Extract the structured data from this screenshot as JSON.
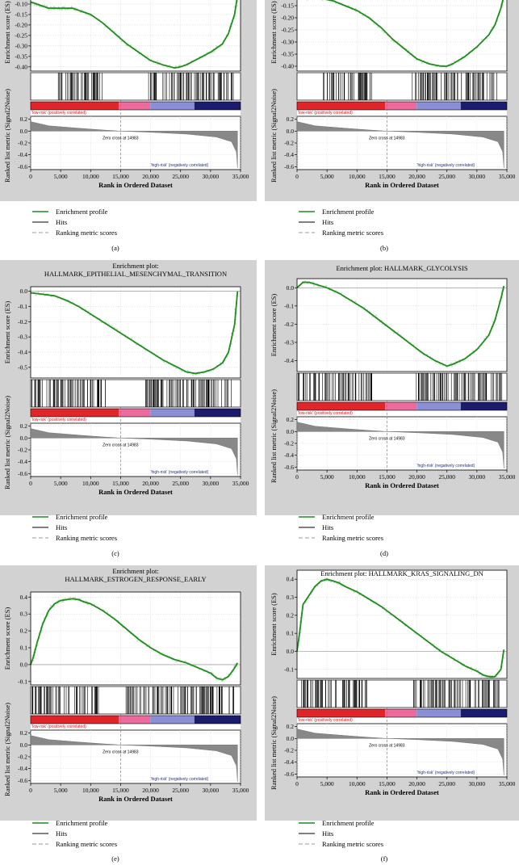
{
  "ticks": {
    "rank_x": [
      "0",
      "5,000",
      "10,000",
      "15,000",
      "20,000",
      "25,000",
      "30,000",
      "35,000"
    ],
    "es_a": [
      "-0.10",
      "-0.15",
      "-0.20",
      "-0.25",
      "-0.30",
      "-0.35",
      "-0.40"
    ],
    "es_b": [
      "-0.15",
      "-0.20",
      "-0.25",
      "-0.30",
      "-0.35",
      "-0.40"
    ],
    "es_c": [
      "0.0",
      "-0.1",
      "-0.2",
      "-0.3",
      "-0.4",
      "-0.5"
    ],
    "es_d": [
      "0.0",
      "-0.1",
      "-0.2",
      "-0.3",
      "-0.4"
    ],
    "es_e": [
      "0.4",
      "0.3",
      "0.2",
      "0.1",
      "0.0",
      "-0.1"
    ],
    "es_f": [
      "0.4",
      "0.3",
      "0.2",
      "0.1",
      "0.0",
      "-0.1"
    ],
    "metric": [
      "0.2",
      "0.0",
      "-0.2",
      "-0.4",
      "-0.6"
    ]
  },
  "labels": {
    "x_axis": "Rank in Ordered Dataset",
    "y_es": "Enrichment score (ES)",
    "y_metric": "Ranked list metric (Signal2Noise)",
    "low_risk": "'low-risk' (positively correlated)",
    "high_risk": "'high-risk' (negatively correlated)",
    "zero_cross": "Zero cross at 14983"
  },
  "legend": {
    "profile": "Enrichment profile",
    "hits": "Hits",
    "ranking": "Ranking metric scores"
  },
  "colors": {
    "profile": "#1e8c1e",
    "band_red": "#e0262b",
    "band_pink": "#ec6b9c",
    "band_navy": "#1c1c6e"
  },
  "chart_data": [
    {
      "type": "line",
      "panel": "(a)",
      "title": "",
      "xlabel": "Rank in Ordered Dataset",
      "ylabel": "Enrichment score (ES)",
      "xlim": [
        0,
        35000
      ],
      "ylim": [
        -0.42,
        -0.05
      ],
      "x": [
        0,
        1000,
        2000,
        3000,
        4000,
        5000,
        6000,
        7000,
        8000,
        9000,
        10000,
        12000,
        14000,
        16000,
        18000,
        20000,
        22000,
        24000,
        25000,
        26000,
        28000,
        30000,
        31000,
        32000,
        33000,
        34000,
        34500
      ],
      "y": [
        -0.09,
        -0.1,
        -0.11,
        -0.12,
        -0.12,
        -0.12,
        -0.12,
        -0.12,
        -0.13,
        -0.14,
        -0.15,
        -0.19,
        -0.24,
        -0.29,
        -0.33,
        -0.37,
        -0.39,
        -0.405,
        -0.4,
        -0.39,
        -0.36,
        -0.33,
        -0.31,
        -0.29,
        -0.24,
        -0.15,
        -0.06
      ],
      "hits_ranges": [
        [
          4300,
          12300
        ],
        [
          19500,
          33900
        ]
      ],
      "zero_cross": 14983,
      "metric_ticks": [
        0.2,
        0.0,
        -0.2,
        -0.4,
        -0.6
      ],
      "metric_ylim": [
        -0.65,
        0.25
      ]
    },
    {
      "type": "line",
      "panel": "(b)",
      "title": "",
      "xlabel": "Rank in Ordered Dataset",
      "ylabel": "Enrichment score (ES)",
      "xlim": [
        0,
        35000
      ],
      "ylim": [
        -0.42,
        -0.1
      ],
      "x": [
        0,
        2000,
        4000,
        6000,
        8000,
        10000,
        12000,
        14000,
        16000,
        18000,
        20000,
        22000,
        24000,
        25000,
        26000,
        28000,
        30000,
        32000,
        33000,
        34000,
        34500
      ],
      "y": [
        -0.12,
        -0.12,
        -0.12,
        -0.13,
        -0.15,
        -0.17,
        -0.2,
        -0.24,
        -0.29,
        -0.33,
        -0.37,
        -0.39,
        -0.4,
        -0.4,
        -0.39,
        -0.36,
        -0.32,
        -0.27,
        -0.23,
        -0.16,
        -0.11
      ],
      "hits_ranges": [
        [
          4300,
          12500
        ],
        [
          19200,
          33800
        ]
      ],
      "zero_cross": 14983,
      "metric_ticks": [
        0.2,
        0.0,
        -0.2,
        -0.4,
        -0.6
      ],
      "metric_ylim": [
        -0.65,
        0.25
      ]
    },
    {
      "type": "line",
      "panel": "(c)",
      "title": "Enrichment plot:\nHALLMARK_EPITHELIAL_MESENCHYMAL_TRANSITION",
      "xlabel": "Rank in Ordered Dataset",
      "ylabel": "Enrichment score (ES)",
      "xlim": [
        0,
        35000
      ],
      "ylim": [
        -0.57,
        0.03
      ],
      "x": [
        0,
        2000,
        4000,
        6000,
        8000,
        10000,
        12000,
        14000,
        16000,
        18000,
        20000,
        22000,
        24000,
        26000,
        27500,
        29000,
        30500,
        32000,
        33000,
        34000,
        34500
      ],
      "y": [
        -0.01,
        -0.02,
        -0.03,
        -0.06,
        -0.1,
        -0.15,
        -0.2,
        -0.25,
        -0.3,
        -0.35,
        -0.4,
        -0.45,
        -0.49,
        -0.53,
        -0.54,
        -0.53,
        -0.51,
        -0.47,
        -0.4,
        -0.22,
        0.0
      ],
      "hits_ranges": [
        [
          100,
          12800
        ],
        [
          19100,
          33600
        ]
      ],
      "zero_cross": 14983,
      "metric_ticks": [
        0.2,
        0.0,
        -0.2,
        -0.4,
        -0.6
      ],
      "metric_ylim": [
        -0.65,
        0.25
      ]
    },
    {
      "type": "line",
      "panel": "(d)",
      "title": "Enrichment plot: HALLMARK_GLYCOLYSIS",
      "xlabel": "Rank in Ordered Dataset",
      "ylabel": "Enrichment score (ES)",
      "xlim": [
        0,
        35000
      ],
      "ylim": [
        -0.46,
        0.05
      ],
      "x": [
        0,
        1000,
        2000,
        3000,
        5000,
        7000,
        9000,
        11000,
        13000,
        15000,
        17000,
        19000,
        21000,
        23000,
        25000,
        26000,
        28000,
        30000,
        32000,
        33000,
        34000,
        34500
      ],
      "y": [
        0.0,
        0.03,
        0.03,
        0.02,
        0.0,
        -0.03,
        -0.07,
        -0.11,
        -0.16,
        -0.21,
        -0.26,
        -0.31,
        -0.36,
        -0.4,
        -0.43,
        -0.42,
        -0.39,
        -0.34,
        -0.26,
        -0.18,
        -0.06,
        0.01
      ],
      "hits_ranges": [
        [
          200,
          12500
        ],
        [
          19500,
          34200
        ]
      ],
      "zero_cross": 14983,
      "metric_ticks": [
        0.2,
        0.0,
        -0.2,
        -0.4,
        -0.6
      ],
      "metric_ylim": [
        -0.65,
        0.25
      ]
    },
    {
      "type": "line",
      "panel": "(e)",
      "title": "Enrichment plot:\nHALLMARK_ESTROGEN_RESPONSE_EARLY",
      "xlabel": "Rank in Ordered Dataset",
      "ylabel": "Enrichment score (ES)",
      "xlim": [
        0,
        35000
      ],
      "ylim": [
        -0.12,
        0.43
      ],
      "x": [
        0,
        500,
        1000,
        2000,
        3000,
        4000,
        5000,
        6000,
        7000,
        8000,
        9000,
        10000,
        12000,
        14000,
        16000,
        18000,
        20000,
        22000,
        24000,
        26000,
        28000,
        30000,
        31000,
        32000,
        33000,
        34000,
        34500
      ],
      "y": [
        0.0,
        0.05,
        0.12,
        0.24,
        0.32,
        0.36,
        0.38,
        0.385,
        0.39,
        0.385,
        0.37,
        0.36,
        0.32,
        0.27,
        0.21,
        0.15,
        0.1,
        0.06,
        0.03,
        0.01,
        -0.02,
        -0.05,
        -0.08,
        -0.09,
        -0.07,
        -0.02,
        0.01
      ],
      "hits_ranges": [
        [
          200,
          11400
        ],
        [
          15800,
          33900
        ]
      ],
      "zero_cross": 14983,
      "metric_ticks": [
        0.2,
        0.0,
        -0.2,
        -0.4,
        -0.6
      ],
      "metric_ylim": [
        -0.65,
        0.25
      ]
    },
    {
      "type": "line",
      "panel": "(f)",
      "title": "Enrichment plot: HALLMARK_KRAS_SIGNALING_DN",
      "xlabel": "Rank in Ordered Dataset",
      "ylabel": "Enrichment score (ES)",
      "xlim": [
        0,
        35000
      ],
      "ylim": [
        -0.15,
        0.45
      ],
      "x": [
        0,
        500,
        1000,
        2000,
        3000,
        4000,
        5000,
        6000,
        7000,
        8000,
        10000,
        12000,
        14000,
        16000,
        18000,
        20000,
        22000,
        24000,
        26000,
        28000,
        30000,
        31000,
        32000,
        33000,
        34000,
        34500
      ],
      "y": [
        0.0,
        0.12,
        0.26,
        0.31,
        0.36,
        0.39,
        0.4,
        0.39,
        0.38,
        0.36,
        0.33,
        0.29,
        0.25,
        0.2,
        0.15,
        0.1,
        0.05,
        0.0,
        -0.04,
        -0.08,
        -0.11,
        -0.13,
        -0.14,
        -0.14,
        -0.1,
        0.01
      ],
      "hits_ranges": [
        [
          200,
          11800
        ],
        [
          19200,
          34200
        ]
      ],
      "zero_cross": 14983,
      "metric_ticks": [
        0.2,
        0.0,
        -0.2,
        -0.4,
        -0.6
      ],
      "metric_ylim": [
        -0.65,
        0.25
      ]
    }
  ]
}
